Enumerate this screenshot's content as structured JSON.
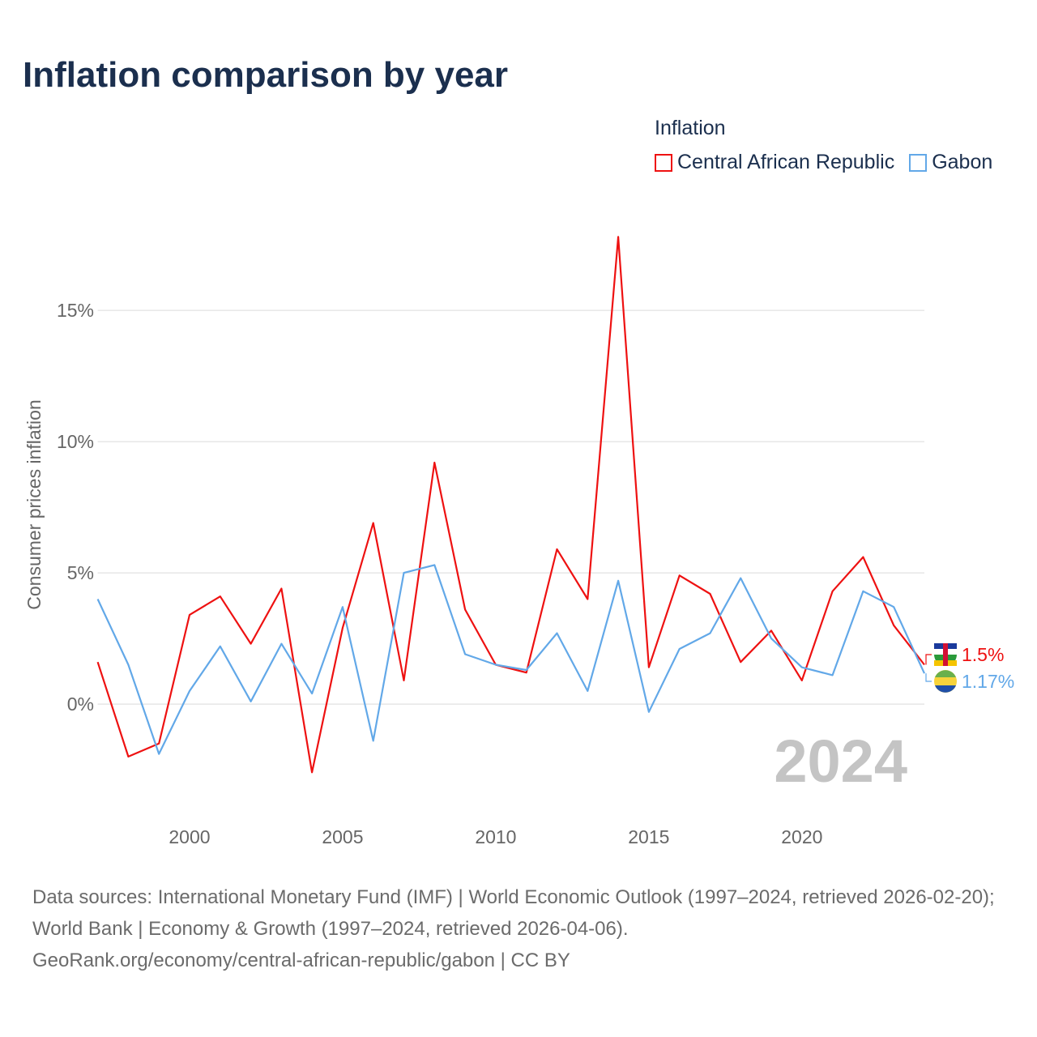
{
  "title": "Inflation comparison by year",
  "legend": {
    "title": "Inflation",
    "items": [
      {
        "label": "Central African Republic",
        "color": "#ee1111"
      },
      {
        "label": "Gabon",
        "color": "#62a8e8"
      }
    ]
  },
  "footer": {
    "sources": "Data sources: International Monetary Fund (IMF) | World Economic Outlook (1997–2024, retrieved 2026-02-20); World Bank | Economy & Growth (1997–2024, retrieved 2026-04-06).",
    "credit": "GeoRank.org/economy/central-african-republic/gabon | CC BY"
  },
  "chart_data": {
    "type": "line",
    "title": "Inflation comparison by year",
    "ylabel": "Consumer prices inflation",
    "xlabel": "",
    "watermark_year": "2024",
    "xlim": [
      1997,
      2024
    ],
    "ylim": [
      -4.35,
      18.8
    ],
    "x_ticks": [
      2000,
      2005,
      2010,
      2015,
      2020
    ],
    "y_ticks": [
      {
        "v": 0,
        "label": "0%"
      },
      {
        "v": 5,
        "label": "5%"
      },
      {
        "v": 10,
        "label": "10%"
      },
      {
        "v": 15,
        "label": "15%"
      }
    ],
    "x": [
      1997,
      1998,
      1999,
      2000,
      2001,
      2002,
      2003,
      2004,
      2005,
      2006,
      2007,
      2008,
      2009,
      2010,
      2011,
      2012,
      2013,
      2014,
      2015,
      2016,
      2017,
      2018,
      2019,
      2020,
      2021,
      2022,
      2023,
      2024
    ],
    "series": [
      {
        "name": "Central African Republic",
        "color": "#ee1111",
        "end_label": "1.5%",
        "values": [
          1.6,
          -2.0,
          -1.5,
          3.4,
          4.1,
          2.3,
          4.4,
          -2.6,
          2.9,
          6.9,
          0.9,
          9.2,
          3.6,
          1.5,
          1.2,
          5.9,
          4.0,
          17.8,
          1.4,
          4.9,
          4.2,
          1.6,
          2.8,
          0.9,
          4.3,
          5.6,
          3.0,
          1.5
        ]
      },
      {
        "name": "Gabon",
        "color": "#62a8e8",
        "end_label": "1.17%",
        "values": [
          4.0,
          1.5,
          -1.9,
          0.5,
          2.2,
          0.1,
          2.3,
          0.4,
          3.7,
          -1.4,
          5.0,
          5.3,
          1.9,
          1.5,
          1.3,
          2.7,
          0.5,
          4.7,
          -0.3,
          2.1,
          2.7,
          4.8,
          2.5,
          1.4,
          1.1,
          4.3,
          3.7,
          1.17
        ]
      }
    ]
  }
}
